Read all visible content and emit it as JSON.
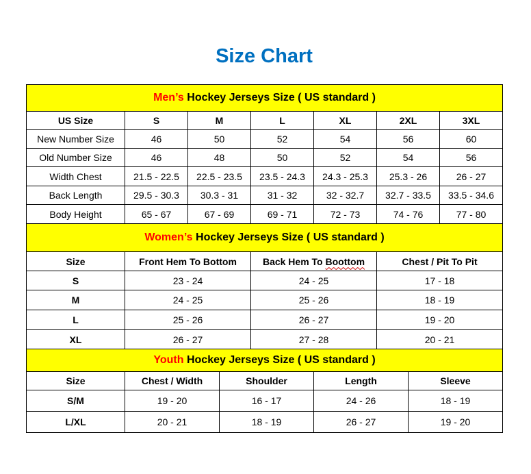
{
  "title": "Size Chart",
  "colors": {
    "title": "#0070C0",
    "band": "#FFFF00",
    "accent": "#FF0000"
  },
  "sections": [
    {
      "id": "men",
      "band_accent": "Men’s",
      "band_rest": " Hockey Jerseys Size ( US standard )",
      "headers": [
        "US Size",
        "S",
        "M",
        "L",
        "XL",
        "2XL",
        "3XL"
      ],
      "rows": [
        [
          "New Number Size",
          "46",
          "50",
          "52",
          "54",
          "56",
          "60"
        ],
        [
          "Old Number Size",
          "46",
          "48",
          "50",
          "52",
          "54",
          "56"
        ],
        [
          "Width Chest",
          "21.5 - 22.5",
          "22.5 - 23.5",
          "23.5 - 24.3",
          "24.3 - 25.3",
          "25.3 - 26",
          "26 - 27"
        ],
        [
          "Back Length",
          "29.5 - 30.3",
          "30.3 - 31",
          "31 - 32",
          "32 - 32.7",
          "32.7 - 33.5",
          "33.5 - 34.6"
        ],
        [
          "Body Height",
          "65 - 67",
          "67 - 69",
          "69 - 71",
          "72 - 73",
          "74 - 76",
          "77 - 80"
        ]
      ]
    },
    {
      "id": "women",
      "band_accent": "Women’s",
      "band_rest": " Hockey Jerseys Size ( US standard )",
      "headers": [
        "Size",
        "Front Hem To Bottom",
        "Back Hem To Boottom",
        "Chest / Pit To Pit"
      ],
      "rows": [
        [
          "S",
          "23 - 24",
          "24 - 25",
          "17 - 18"
        ],
        [
          "M",
          "24 - 25",
          "25 - 26",
          "18 - 19"
        ],
        [
          "L",
          "25 - 26",
          "26 - 27",
          "19 - 20"
        ],
        [
          "XL",
          "26 - 27",
          "27 - 28",
          "20 - 21"
        ]
      ]
    },
    {
      "id": "youth",
      "band_accent": "Youth",
      "band_rest": " Hockey Jerseys Size ( US standard )",
      "headers": [
        "Size",
        "Chest / Width",
        "Shoulder",
        "Length",
        "Sleeve"
      ],
      "rows": [
        [
          "S/M",
          "19 - 20",
          "16 - 17",
          "24 - 26",
          "18 - 19"
        ],
        [
          "L/XL",
          "20 - 21",
          "18 - 19",
          "26 - 27",
          "19 - 20"
        ]
      ]
    }
  ]
}
